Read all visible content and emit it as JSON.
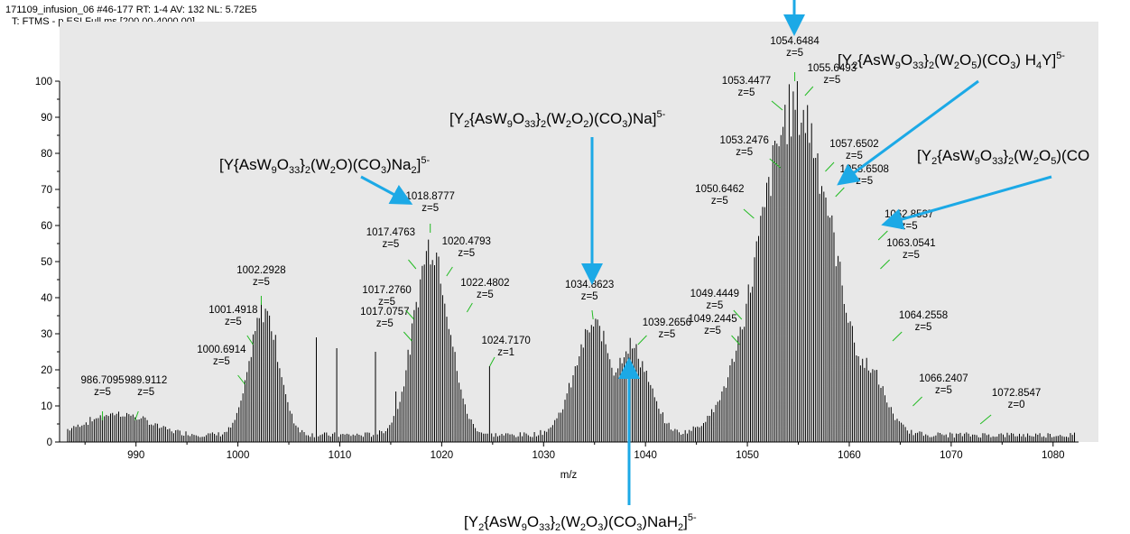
{
  "header": {
    "line1": "171109_infusion_06 #46-177  RT: 1-4  AV: 132  NL: 5.72E5",
    "line2": "T: FTMS - p ESI Full ms [200.00-4000.00]"
  },
  "colors": {
    "plot_bg": "#e8e8e8",
    "spectrum": "#000000",
    "label_tick": "#22bb22",
    "arrow": "#1ca9e6"
  },
  "chart_data": {
    "type": "line",
    "xlabel": "m/z",
    "ylabel": "",
    "xlim": [
      982.5,
      1082.5
    ],
    "ylim": [
      0,
      105
    ],
    "x_ticks": [
      "990",
      "1000",
      "1010",
      "1020",
      "1030",
      "1040",
      "1050",
      "1060",
      "1070",
      "1080"
    ],
    "y_ticks": [
      "0",
      "10",
      "20",
      "30",
      "40",
      "50",
      "60",
      "70",
      "80",
      "90",
      "100"
    ],
    "envelopes": [
      {
        "center": 988.2,
        "width": 3.0,
        "height": 6.5
      },
      {
        "center": 1002.6,
        "width": 1.4,
        "height": 38
      },
      {
        "center": 1019.0,
        "width": 1.7,
        "height": 58
      },
      {
        "center": 1035.0,
        "width": 1.9,
        "height": 33
      },
      {
        "center": 1038.5,
        "width": 1.8,
        "height": 27
      },
      {
        "center": 1054.8,
        "width": 3.6,
        "height": 100
      },
      {
        "center": 1061.5,
        "width": 1.8,
        "height": 22
      }
    ],
    "spikes": [
      {
        "x": 1007.8,
        "y": 29
      },
      {
        "x": 1009.7,
        "y": 26
      },
      {
        "x": 1013.5,
        "y": 25
      },
      {
        "x": 1015.6,
        "y": 14
      },
      {
        "x": 1024.8,
        "y": 21
      }
    ],
    "peak_labels": [
      {
        "mz": "986.7095",
        "z": "z=5",
        "x": 986.7095,
        "y": 6
      },
      {
        "mz": "989.9112",
        "z": "z=5",
        "x": 989.9112,
        "y": 6
      },
      {
        "mz": "1000.6914",
        "z": "z=5",
        "x": 1000.6914,
        "y": 16
      },
      {
        "mz": "1001.4918",
        "z": "z=5",
        "x": 1001.4918,
        "y": 27
      },
      {
        "mz": "1002.2928",
        "z": "z=5",
        "x": 1002.2928,
        "y": 38
      },
      {
        "mz": "1017.0757",
        "z": "z=5",
        "x": 1017.0757,
        "y": 28
      },
      {
        "mz": "1017.2760",
        "z": "z=5",
        "x": 1017.276,
        "y": 34
      },
      {
        "mz": "1017.4763",
        "z": "z=5",
        "x": 1017.4763,
        "y": 48
      },
      {
        "mz": "1018.8777",
        "z": "z=5",
        "x": 1018.8777,
        "y": 58
      },
      {
        "mz": "1020.4793",
        "z": "z=5",
        "x": 1020.4793,
        "y": 46
      },
      {
        "mz": "1022.4802",
        "z": "z=5",
        "x": 1022.4802,
        "y": 36
      },
      {
        "mz": "1024.7170",
        "z": "z=1",
        "x": 1024.717,
        "y": 21
      },
      {
        "mz": "1034.8623",
        "z": "z=5",
        "x": 1034.8623,
        "y": 34
      },
      {
        "mz": "1039.2656",
        "z": "z=5",
        "x": 1039.2656,
        "y": 27
      },
      {
        "mz": "1049.2445",
        "z": "z=5",
        "x": 1049.2445,
        "y": 27
      },
      {
        "mz": "1049.4449",
        "z": "z=5",
        "x": 1049.4449,
        "y": 34
      },
      {
        "mz": "1050.6462",
        "z": "z=5",
        "x": 1050.6462,
        "y": 62
      },
      {
        "mz": "1053.2476",
        "z": "z=5",
        "x": 1053.2476,
        "y": 76
      },
      {
        "mz": "1053.4477",
        "z": "z=5",
        "x": 1053.4477,
        "y": 92
      },
      {
        "mz": "1054.6484",
        "z": "z=5",
        "x": 1054.6484,
        "y": 100
      },
      {
        "mz": "1055.6493",
        "z": "z=5",
        "x": 1055.6493,
        "y": 96
      },
      {
        "mz": "1057.6502",
        "z": "z=5",
        "x": 1057.6502,
        "y": 75
      },
      {
        "mz": "1058.6508",
        "z": "z=5",
        "x": 1058.6508,
        "y": 68
      },
      {
        "mz": "1062.8537",
        "z": "z=5",
        "x": 1062.8537,
        "y": 56
      },
      {
        "mz": "1063.0541",
        "z": "z=5",
        "x": 1063.0541,
        "y": 48
      },
      {
        "mz": "1064.2558",
        "z": "z=5",
        "x": 1064.2558,
        "y": 28
      },
      {
        "mz": "1066.2407",
        "z": "z=5",
        "x": 1066.2407,
        "y": 10
      },
      {
        "mz": "1072.8547",
        "z": "z=0",
        "x": 1072.8547,
        "y": 5
      }
    ]
  },
  "annotations": {
    "a1": {
      "a": "[Y{AsW",
      "b": "9",
      "c": "O",
      "d": "33",
      "e": "}",
      "f": "2",
      "g": "(W",
      "h": "2",
      "i": "O)(CO",
      "j": "3",
      "k": ")Na",
      "l": "2",
      "m": "]",
      "n": "5-"
    },
    "a2": {
      "a": "[Y",
      "b": "2",
      "c": "{AsW",
      "d": "9",
      "e": "O",
      "f": "33",
      "g": "}",
      "h": "2",
      "i": "(W",
      "j": "2",
      "k": "O",
      "l": "2",
      "m": ")(CO",
      "n": "3",
      "o": ")Na]",
      "p": "5-"
    },
    "a3": {
      "a": "[Y",
      "b": "2",
      "c": "{AsW",
      "d": "9",
      "e": "O",
      "f": "33",
      "g": "}",
      "h": "2",
      "i": "(W",
      "j": "2",
      "k": "O",
      "l": "3",
      "m": ")(CO",
      "n": "3",
      "o": ")NaH",
      "p": "2",
      "q": "]",
      "r": "5-"
    },
    "a4": {
      "a": "[Y",
      "b": "2",
      "c": "{AsW",
      "d": "9",
      "e": "O",
      "f": "33",
      "g": "}",
      "h": "2",
      "i": "(W",
      "j": "2",
      "k": "O",
      "l": "5",
      "m": ")(CO",
      "n": "3",
      "o": ") H",
      "p": "4",
      "q": "Y]",
      "r": "5-"
    },
    "a5": {
      "a": "[Y",
      "b": "2",
      "c": "{AsW",
      "d": "9",
      "e": "O",
      "f": "33",
      "g": "}",
      "h": "2",
      "i": "(W",
      "j": "2",
      "k": "O",
      "l": "5",
      "m": ")(CO"
    }
  }
}
